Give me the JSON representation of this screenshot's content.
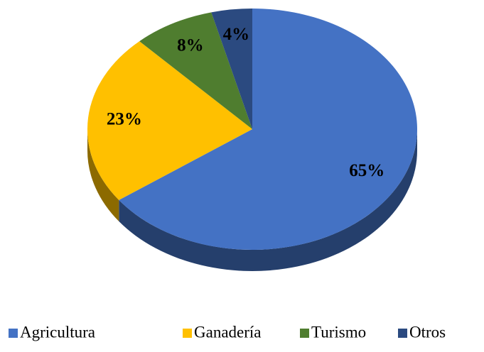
{
  "chart_data": {
    "type": "pie3d",
    "categories": [
      "Agricultura",
      "Ganadería",
      "Turismo",
      "Otros"
    ],
    "values": [
      65,
      23,
      8,
      4
    ],
    "value_labels": [
      "65%",
      "23%",
      "8%",
      "4%"
    ],
    "colors": [
      "#4472c4",
      "#ffc000",
      "#4f7d2f",
      "#2b4a80"
    ],
    "legend": "bottom"
  }
}
